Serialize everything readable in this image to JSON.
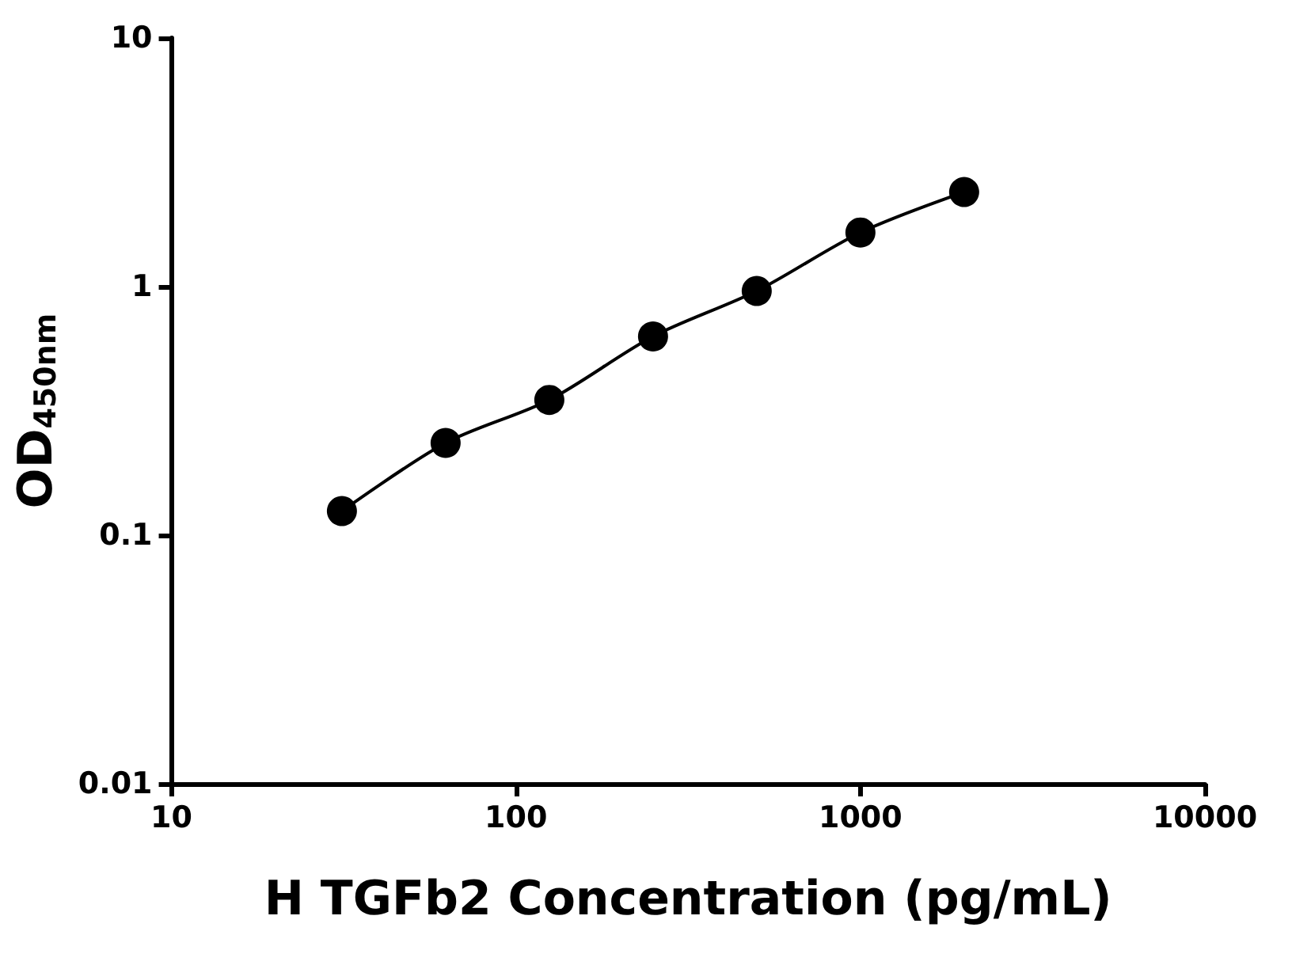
{
  "chart_data": {
    "type": "scatter",
    "xlabel": "H TGFb2 Concentration (pg/mL)",
    "ylabel": "OD$_{450nm}$",
    "log": "xy",
    "grid": false,
    "x": [
      31.25,
      62.5,
      125,
      250,
      500,
      1000,
      2000
    ],
    "series": [
      {
        "marker": "circle",
        "color": "#000000",
        "values": [
          0.125,
          0.235,
          0.35,
          0.63,
          0.96,
          1.65,
          2.4
        ]
      },
      {
        "type": "line",
        "line_style": "solid",
        "color": "#000000",
        "x": [
          31.25,
          62.5,
          125,
          250,
          500,
          1000,
          2000
        ],
        "values": [
          0.125,
          0.235,
          0.35,
          0.63,
          0.96,
          1.65,
          2.4
        ]
      }
    ],
    "xlim": [
      10,
      10000
    ],
    "xticks": [
      10,
      100,
      1000,
      10000
    ],
    "ylim": [
      0.01,
      10
    ],
    "yticks": [
      0.01,
      0.1,
      1,
      10
    ]
  }
}
